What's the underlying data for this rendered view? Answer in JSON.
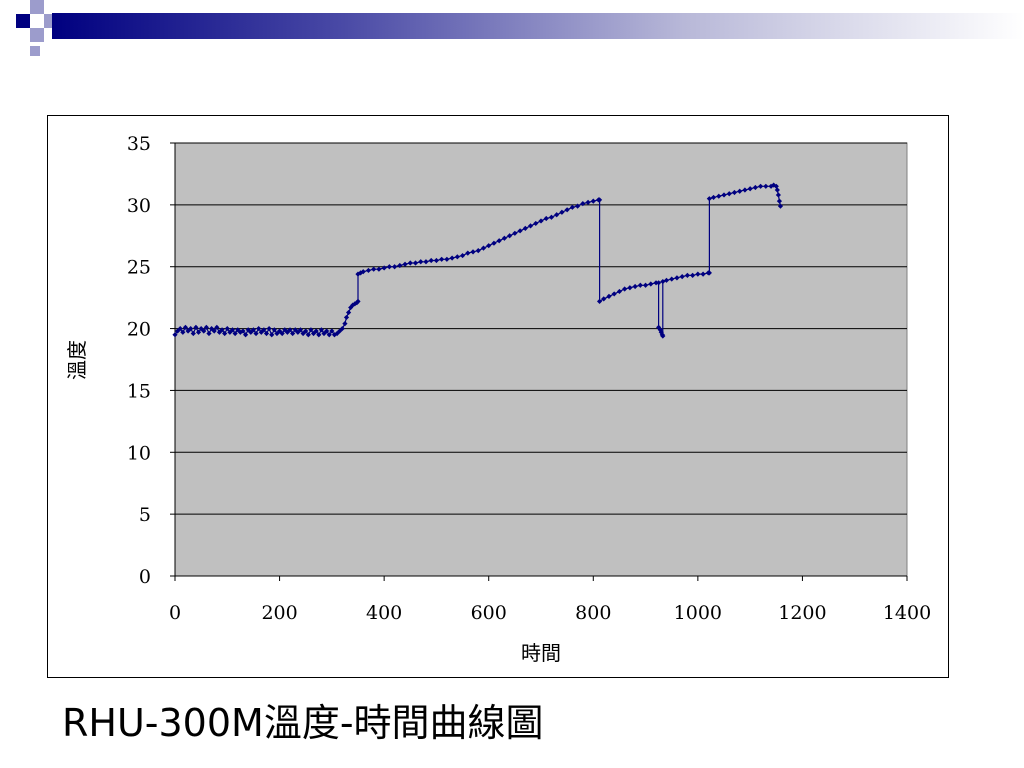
{
  "slide": {
    "title": "RHU-300M溫度-時間曲線圖"
  },
  "colors": {
    "logo_dark": "#000080",
    "logo_light": "#9c9ccc",
    "plot_background": "#c0c0c0",
    "series": "#000080"
  },
  "chart_data": {
    "type": "line",
    "xlabel": "時間",
    "ylabel": "溫度",
    "xlim": [
      0,
      1400
    ],
    "ylim": [
      0,
      35
    ],
    "xticks": [
      0,
      200,
      400,
      600,
      800,
      1000,
      1200,
      1400
    ],
    "yticks": [
      0,
      5,
      10,
      15,
      20,
      25,
      30,
      35
    ],
    "grid": "horizontal",
    "marker": "diamond",
    "series": [
      {
        "values": [
          [
            0,
            19.5
          ],
          [
            5,
            19.8
          ],
          [
            10,
            20.0
          ],
          [
            15,
            19.7
          ],
          [
            20,
            20.1
          ],
          [
            25,
            19.8
          ],
          [
            30,
            20.0
          ],
          [
            35,
            19.6
          ],
          [
            40,
            20.1
          ],
          [
            45,
            19.7
          ],
          [
            50,
            20.0
          ],
          [
            55,
            19.8
          ],
          [
            60,
            20.1
          ],
          [
            65,
            19.6
          ],
          [
            70,
            20.0
          ],
          [
            75,
            19.8
          ],
          [
            80,
            20.1
          ],
          [
            85,
            19.7
          ],
          [
            90,
            19.9
          ],
          [
            95,
            19.6
          ],
          [
            100,
            20.0
          ],
          [
            105,
            19.7
          ],
          [
            110,
            19.9
          ],
          [
            115,
            19.6
          ],
          [
            120,
            19.9
          ],
          [
            125,
            19.7
          ],
          [
            130,
            19.8
          ],
          [
            135,
            19.5
          ],
          [
            140,
            19.9
          ],
          [
            145,
            19.7
          ],
          [
            150,
            19.9
          ],
          [
            155,
            19.6
          ],
          [
            160,
            20.0
          ],
          [
            165,
            19.7
          ],
          [
            170,
            19.9
          ],
          [
            175,
            19.6
          ],
          [
            180,
            20.0
          ],
          [
            185,
            19.5
          ],
          [
            190,
            19.9
          ],
          [
            195,
            19.6
          ],
          [
            200,
            19.8
          ],
          [
            205,
            19.6
          ],
          [
            210,
            19.9
          ],
          [
            215,
            19.7
          ],
          [
            220,
            19.9
          ],
          [
            225,
            19.6
          ],
          [
            230,
            19.9
          ],
          [
            235,
            19.7
          ],
          [
            240,
            19.9
          ],
          [
            245,
            19.6
          ],
          [
            250,
            19.8
          ],
          [
            255,
            19.5
          ],
          [
            260,
            19.9
          ],
          [
            265,
            19.6
          ],
          [
            270,
            19.8
          ],
          [
            275,
            19.5
          ],
          [
            280,
            19.9
          ],
          [
            285,
            19.6
          ],
          [
            290,
            19.8
          ],
          [
            295,
            19.5
          ],
          [
            300,
            19.8
          ],
          [
            305,
            19.5
          ],
          [
            310,
            19.6
          ],
          [
            315,
            19.8
          ],
          [
            320,
            20.0
          ],
          [
            325,
            20.4
          ],
          [
            328,
            20.9
          ],
          [
            332,
            21.3
          ],
          [
            336,
            21.7
          ],
          [
            340,
            21.9
          ],
          [
            344,
            22.0
          ],
          [
            348,
            22.1
          ],
          [
            350,
            22.2
          ],
          [
            350,
            24.4
          ],
          [
            355,
            24.5
          ],
          [
            360,
            24.6
          ],
          [
            370,
            24.7
          ],
          [
            380,
            24.8
          ],
          [
            390,
            24.8
          ],
          [
            400,
            24.9
          ],
          [
            410,
            25.0
          ],
          [
            420,
            25.0
          ],
          [
            430,
            25.1
          ],
          [
            440,
            25.2
          ],
          [
            450,
            25.3
          ],
          [
            460,
            25.3
          ],
          [
            470,
            25.4
          ],
          [
            480,
            25.4
          ],
          [
            490,
            25.5
          ],
          [
            500,
            25.5
          ],
          [
            510,
            25.6
          ],
          [
            520,
            25.6
          ],
          [
            530,
            25.7
          ],
          [
            540,
            25.8
          ],
          [
            550,
            25.9
          ],
          [
            560,
            26.1
          ],
          [
            570,
            26.2
          ],
          [
            580,
            26.3
          ],
          [
            590,
            26.5
          ],
          [
            600,
            26.7
          ],
          [
            610,
            26.9
          ],
          [
            620,
            27.1
          ],
          [
            630,
            27.3
          ],
          [
            640,
            27.5
          ],
          [
            650,
            27.7
          ],
          [
            660,
            27.9
          ],
          [
            670,
            28.1
          ],
          [
            680,
            28.3
          ],
          [
            690,
            28.5
          ],
          [
            700,
            28.7
          ],
          [
            710,
            28.9
          ],
          [
            720,
            29.0
          ],
          [
            730,
            29.2
          ],
          [
            740,
            29.4
          ],
          [
            750,
            29.6
          ],
          [
            760,
            29.8
          ],
          [
            770,
            29.9
          ],
          [
            780,
            30.1
          ],
          [
            790,
            30.2
          ],
          [
            800,
            30.3
          ],
          [
            810,
            30.4
          ],
          [
            812,
            30.4
          ],
          [
            812,
            22.2
          ],
          [
            820,
            22.4
          ],
          [
            830,
            22.6
          ],
          [
            840,
            22.8
          ],
          [
            850,
            23.0
          ],
          [
            860,
            23.2
          ],
          [
            870,
            23.3
          ],
          [
            880,
            23.4
          ],
          [
            890,
            23.5
          ],
          [
            900,
            23.5
          ],
          [
            910,
            23.6
          ],
          [
            920,
            23.7
          ],
          [
            925,
            23.7
          ],
          [
            925,
            20.1
          ],
          [
            928,
            19.9
          ],
          [
            930,
            19.7
          ],
          [
            932,
            19.5
          ],
          [
            933,
            19.4
          ],
          [
            933,
            23.8
          ],
          [
            940,
            23.9
          ],
          [
            950,
            24.0
          ],
          [
            960,
            24.1
          ],
          [
            970,
            24.2
          ],
          [
            980,
            24.3
          ],
          [
            990,
            24.3
          ],
          [
            1000,
            24.4
          ],
          [
            1010,
            24.4
          ],
          [
            1020,
            24.5
          ],
          [
            1022,
            24.5
          ],
          [
            1022,
            30.5
          ],
          [
            1030,
            30.6
          ],
          [
            1040,
            30.7
          ],
          [
            1050,
            30.8
          ],
          [
            1060,
            30.9
          ],
          [
            1070,
            31.0
          ],
          [
            1080,
            31.1
          ],
          [
            1090,
            31.2
          ],
          [
            1100,
            31.3
          ],
          [
            1110,
            31.4
          ],
          [
            1120,
            31.5
          ],
          [
            1130,
            31.5
          ],
          [
            1140,
            31.5
          ],
          [
            1145,
            31.6
          ],
          [
            1150,
            31.5
          ],
          [
            1152,
            31.2
          ],
          [
            1154,
            30.8
          ],
          [
            1156,
            30.3
          ],
          [
            1158,
            29.9
          ]
        ]
      }
    ]
  }
}
